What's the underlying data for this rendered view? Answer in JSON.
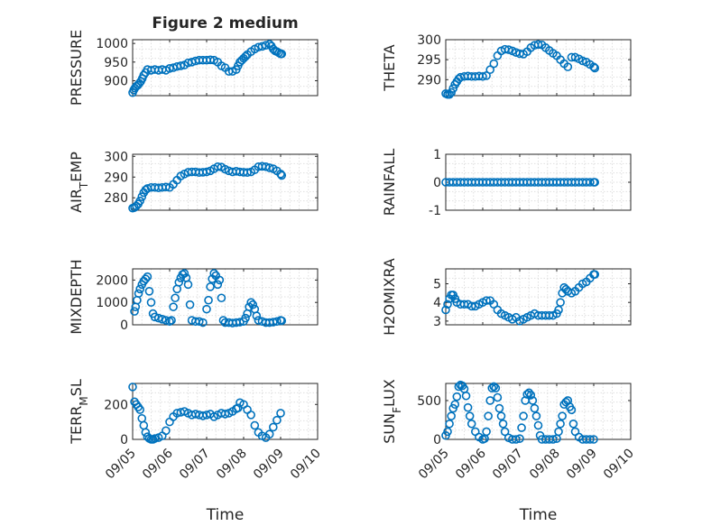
{
  "chart_data": [
    {
      "type": "scatter",
      "title": "Figure 2 medium",
      "ylabel": "PRESSURE",
      "ylim": [
        860,
        1010
      ],
      "yticks": [
        900,
        950,
        1000
      ],
      "xticks": [
        "09/05",
        "09/06",
        "09/07",
        "09/08",
        "09/09",
        "09/10"
      ],
      "xticklabels_shown": false,
      "grid": true,
      "series": [
        {
          "x": [
            0.0,
            0.03,
            0.06,
            0.1,
            0.14,
            0.18,
            0.22,
            0.26,
            0.3,
            0.35,
            0.4,
            0.5,
            0.6,
            0.7,
            0.8,
            0.9,
            1.0,
            1.1,
            1.2,
            1.3,
            1.4,
            1.5,
            1.6,
            1.7,
            1.8,
            1.9,
            2.0,
            2.1,
            2.2,
            2.3,
            2.4,
            2.5,
            2.6,
            2.7,
            2.8,
            2.85,
            2.9,
            2.95,
            3.0,
            3.05,
            3.1,
            3.2,
            3.3,
            3.4,
            3.5,
            3.6,
            3.7,
            3.75,
            3.8,
            3.85,
            3.9,
            3.95,
            4.0,
            4.03
          ],
          "y": [
            868,
            875,
            880,
            885,
            888,
            893,
            898,
            906,
            915,
            922,
            930,
            928,
            930,
            928,
            930,
            928,
            933,
            935,
            938,
            940,
            942,
            948,
            950,
            953,
            955,
            955,
            955,
            956,
            955,
            950,
            940,
            935,
            925,
            925,
            930,
            940,
            950,
            955,
            960,
            965,
            970,
            978,
            985,
            990,
            992,
            995,
            998,
            993,
            985,
            980,
            978,
            975,
            972,
            972
          ]
        }
      ]
    },
    {
      "type": "scatter",
      "title": "",
      "ylabel": "THETA",
      "ylim": [
        286,
        300
      ],
      "yticks": [
        290,
        295,
        300
      ],
      "xticks": [
        "09/05",
        "09/06",
        "09/07",
        "09/08",
        "09/09",
        "09/10"
      ],
      "xticklabels_shown": false,
      "grid": true,
      "series": [
        {
          "x": [
            0.0,
            0.05,
            0.1,
            0.15,
            0.2,
            0.25,
            0.3,
            0.35,
            0.4,
            0.5,
            0.6,
            0.7,
            0.8,
            0.9,
            1.0,
            1.1,
            1.2,
            1.3,
            1.4,
            1.5,
            1.6,
            1.7,
            1.8,
            1.9,
            2.0,
            2.1,
            2.2,
            2.3,
            2.4,
            2.5,
            2.6,
            2.7,
            2.8,
            2.9,
            3.0,
            3.1,
            3.2,
            3.3,
            3.4,
            3.5,
            3.6,
            3.7,
            3.8,
            3.9,
            4.0,
            4.03
          ],
          "y": [
            286.5,
            286.3,
            286.3,
            286.8,
            287.8,
            288.8,
            289.5,
            290.2,
            290.6,
            290.8,
            290.9,
            290.8,
            290.8,
            290.9,
            290.8,
            291.0,
            292.5,
            294.0,
            296.0,
            297.2,
            297.6,
            297.5,
            297.2,
            296.8,
            296.5,
            296.4,
            297.0,
            298.0,
            298.6,
            298.8,
            298.7,
            298.0,
            297.3,
            296.6,
            296.0,
            295.0,
            294.0,
            293.2,
            295.6,
            295.6,
            295.2,
            294.7,
            294.4,
            293.8,
            293.2,
            292.9
          ]
        }
      ]
    },
    {
      "type": "scatter",
      "title": "",
      "ylabel": "AIR_TEMP",
      "ylim": [
        274,
        301
      ],
      "yticks": [
        280,
        290,
        300
      ],
      "xticks": [
        "09/05",
        "09/06",
        "09/07",
        "09/08",
        "09/09",
        "09/10"
      ],
      "xticklabels_shown": false,
      "grid": true,
      "series": [
        {
          "x": [
            0.0,
            0.05,
            0.1,
            0.15,
            0.2,
            0.25,
            0.3,
            0.35,
            0.4,
            0.5,
            0.6,
            0.7,
            0.8,
            0.9,
            1.0,
            1.1,
            1.2,
            1.3,
            1.4,
            1.5,
            1.6,
            1.7,
            1.8,
            1.9,
            2.0,
            2.1,
            2.2,
            2.3,
            2.4,
            2.5,
            2.6,
            2.7,
            2.8,
            2.9,
            3.0,
            3.1,
            3.2,
            3.3,
            3.4,
            3.5,
            3.6,
            3.7,
            3.8,
            3.9,
            4.0,
            4.03
          ],
          "y": [
            275.0,
            275.3,
            276.0,
            277.0,
            278.5,
            280.5,
            282.5,
            283.8,
            284.5,
            285.0,
            285.0,
            284.8,
            285.0,
            285.2,
            285.0,
            286.5,
            288.5,
            290.5,
            291.5,
            292.3,
            292.5,
            292.5,
            292.2,
            292.3,
            292.5,
            293.0,
            294.0,
            295.0,
            294.8,
            293.8,
            293.0,
            292.5,
            292.8,
            292.5,
            292.3,
            292.2,
            292.5,
            293.5,
            295.0,
            295.2,
            295.0,
            294.5,
            294.0,
            293.0,
            291.5,
            290.8
          ]
        }
      ]
    },
    {
      "type": "scatter",
      "title": "",
      "ylabel": "RAINFALL",
      "ylim": [
        -1,
        1
      ],
      "yticks": [
        -1,
        0,
        1
      ],
      "xticks": [
        "09/05",
        "09/06",
        "09/07",
        "09/08",
        "09/09",
        "09/10"
      ],
      "xticklabels_shown": false,
      "grid": true,
      "series": [
        {
          "x": [
            0.0,
            0.1,
            0.2,
            0.3,
            0.4,
            0.5,
            0.6,
            0.7,
            0.8,
            0.9,
            1.0,
            1.1,
            1.2,
            1.3,
            1.4,
            1.5,
            1.6,
            1.7,
            1.8,
            1.9,
            2.0,
            2.1,
            2.2,
            2.3,
            2.4,
            2.5,
            2.6,
            2.7,
            2.8,
            2.9,
            3.0,
            3.1,
            3.2,
            3.3,
            3.4,
            3.5,
            3.6,
            3.7,
            3.8,
            3.9,
            4.0,
            4.03
          ],
          "y": [
            0,
            0,
            0,
            0,
            0,
            0,
            0,
            0,
            0,
            0,
            0,
            0,
            0,
            0,
            0,
            0,
            0,
            0,
            0,
            0,
            0,
            0,
            0,
            0,
            0,
            0,
            0,
            0,
            0,
            0,
            0,
            0,
            0,
            0,
            0,
            0,
            0,
            0,
            0,
            0,
            0,
            0
          ]
        }
      ]
    },
    {
      "type": "scatter",
      "title": "",
      "ylabel": "MIXDEPTH",
      "ylim": [
        0,
        2500
      ],
      "yticks": [
        0,
        1000,
        2000
      ],
      "xticks": [
        "09/05",
        "09/06",
        "09/07",
        "09/08",
        "09/09",
        "09/10"
      ],
      "xticklabels_shown": false,
      "grid": true,
      "series": [
        {
          "x": [
            0.05,
            0.08,
            0.12,
            0.16,
            0.2,
            0.25,
            0.3,
            0.35,
            0.4,
            0.45,
            0.5,
            0.55,
            0.6,
            0.7,
            0.8,
            0.9,
            1.0,
            1.05,
            1.1,
            1.15,
            1.2,
            1.25,
            1.3,
            1.35,
            1.4,
            1.45,
            1.5,
            1.55,
            1.6,
            1.7,
            1.8,
            1.9,
            2.0,
            2.05,
            2.1,
            2.15,
            2.2,
            2.25,
            2.3,
            2.35,
            2.4,
            2.45,
            2.5,
            2.6,
            2.7,
            2.8,
            2.9,
            3.0,
            3.05,
            3.1,
            3.15,
            3.2,
            3.25,
            3.3,
            3.35,
            3.4,
            3.5,
            3.6,
            3.7,
            3.8,
            3.9,
            4.0,
            4.03
          ],
          "y": [
            600,
            800,
            1100,
            1400,
            1600,
            1800,
            1950,
            2050,
            2150,
            1500,
            1000,
            500,
            350,
            300,
            250,
            200,
            150,
            200,
            800,
            1200,
            1600,
            1900,
            2100,
            2250,
            2300,
            2100,
            1800,
            900,
            200,
            150,
            150,
            100,
            700,
            1100,
            1700,
            2050,
            2300,
            2200,
            1800,
            2000,
            1200,
            200,
            100,
            100,
            80,
            100,
            120,
            150,
            300,
            500,
            800,
            1000,
            900,
            700,
            400,
            200,
            150,
            100,
            100,
            120,
            150,
            200,
            180
          ]
        }
      ]
    },
    {
      "type": "scatter",
      "title": "",
      "ylabel": "H2OMIXRA",
      "ylim": [
        2.8,
        5.8
      ],
      "yticks": [
        3,
        4,
        5
      ],
      "xticks": [
        "09/05",
        "09/06",
        "09/07",
        "09/08",
        "09/09",
        "09/10"
      ],
      "xticklabels_shown": false,
      "grid": true,
      "series": [
        {
          "x": [
            0.0,
            0.05,
            0.1,
            0.15,
            0.2,
            0.25,
            0.3,
            0.4,
            0.5,
            0.6,
            0.7,
            0.8,
            0.9,
            1.0,
            1.1,
            1.2,
            1.3,
            1.4,
            1.5,
            1.6,
            1.7,
            1.8,
            1.9,
            2.0,
            2.1,
            2.2,
            2.3,
            2.4,
            2.5,
            2.6,
            2.7,
            2.8,
            2.9,
            3.0,
            3.05,
            3.1,
            3.15,
            3.2,
            3.25,
            3.3,
            3.4,
            3.5,
            3.6,
            3.7,
            3.8,
            3.9,
            4.0,
            4.03
          ],
          "y": [
            3.6,
            3.9,
            4.2,
            4.4,
            4.4,
            4.2,
            4.0,
            3.9,
            3.9,
            3.9,
            3.8,
            3.8,
            3.9,
            4.0,
            4.1,
            4.1,
            3.9,
            3.6,
            3.4,
            3.3,
            3.2,
            3.1,
            3.2,
            3.0,
            3.1,
            3.2,
            3.3,
            3.4,
            3.3,
            3.3,
            3.3,
            3.3,
            3.3,
            3.4,
            3.6,
            4.0,
            4.5,
            4.8,
            4.7,
            4.6,
            4.5,
            4.6,
            4.8,
            5.0,
            5.1,
            5.3,
            5.5,
            5.5
          ]
        }
      ]
    },
    {
      "type": "scatter",
      "title": "",
      "ylabel": "TERR_MSL",
      "ylim": [
        0,
        320
      ],
      "yticks": [
        0,
        200
      ],
      "xticks": [
        "09/05",
        "09/06",
        "09/07",
        "09/08",
        "09/09",
        "09/10"
      ],
      "xticklabels_shown": true,
      "xlabel": "Time",
      "grid": true,
      "series": [
        {
          "x": [
            0.0,
            0.05,
            0.1,
            0.15,
            0.2,
            0.25,
            0.3,
            0.35,
            0.4,
            0.45,
            0.5,
            0.55,
            0.6,
            0.7,
            0.8,
            0.9,
            1.0,
            1.1,
            1.2,
            1.3,
            1.4,
            1.5,
            1.6,
            1.7,
            1.8,
            1.9,
            2.0,
            2.1,
            2.2,
            2.3,
            2.4,
            2.5,
            2.6,
            2.7,
            2.8,
            2.85,
            2.9,
            3.0,
            3.1,
            3.2,
            3.3,
            3.4,
            3.5,
            3.6,
            3.7,
            3.8,
            3.9,
            4.0
          ],
          "y": [
            300,
            215,
            200,
            185,
            170,
            120,
            80,
            40,
            15,
            5,
            0,
            0,
            5,
            10,
            20,
            50,
            100,
            130,
            150,
            155,
            160,
            150,
            140,
            145,
            140,
            135,
            140,
            145,
            130,
            140,
            150,
            145,
            150,
            160,
            175,
            180,
            210,
            200,
            170,
            140,
            80,
            40,
            20,
            10,
            30,
            70,
            110,
            150
          ]
        }
      ]
    },
    {
      "type": "scatter",
      "title": "",
      "ylabel": "SUN_FLUX",
      "ylim": [
        0,
        720
      ],
      "yticks": [
        0,
        500
      ],
      "xticks": [
        "09/05",
        "09/06",
        "09/07",
        "09/08",
        "09/09",
        "09/10"
      ],
      "xticklabels_shown": true,
      "xlabel": "Time",
      "grid": true,
      "series": [
        {
          "x": [
            0.0,
            0.05,
            0.1,
            0.15,
            0.2,
            0.25,
            0.3,
            0.35,
            0.4,
            0.45,
            0.5,
            0.55,
            0.6,
            0.65,
            0.7,
            0.8,
            0.9,
            1.0,
            1.05,
            1.1,
            1.15,
            1.2,
            1.25,
            1.3,
            1.35,
            1.4,
            1.45,
            1.5,
            1.55,
            1.6,
            1.7,
            1.8,
            1.9,
            2.0,
            2.05,
            2.1,
            2.15,
            2.2,
            2.25,
            2.3,
            2.35,
            2.4,
            2.45,
            2.5,
            2.55,
            2.6,
            2.7,
            2.8,
            2.9,
            3.0,
            3.05,
            3.1,
            3.15,
            3.2,
            3.25,
            3.3,
            3.35,
            3.4,
            3.45,
            3.5,
            3.6,
            3.7,
            3.8,
            3.9,
            4.0
          ],
          "y": [
            50,
            100,
            200,
            300,
            400,
            450,
            550,
            680,
            700,
            690,
            650,
            560,
            410,
            300,
            200,
            100,
            30,
            0,
            10,
            100,
            300,
            500,
            660,
            680,
            660,
            540,
            400,
            300,
            200,
            100,
            20,
            0,
            0,
            10,
            150,
            300,
            500,
            580,
            600,
            570,
            500,
            400,
            300,
            180,
            50,
            0,
            0,
            0,
            0,
            10,
            100,
            200,
            300,
            450,
            480,
            500,
            420,
            380,
            200,
            100,
            30,
            0,
            0,
            0,
            0
          ]
        }
      ]
    }
  ]
}
